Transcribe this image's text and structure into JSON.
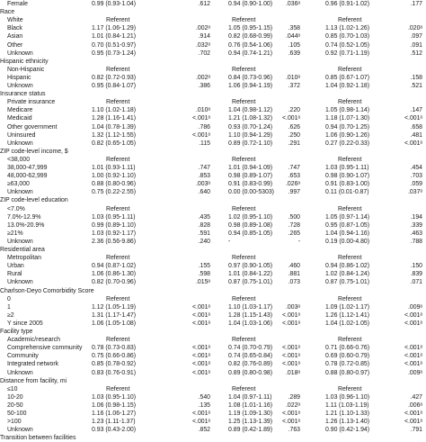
{
  "table": {
    "rows": [
      {
        "kind": "data",
        "label": "Female",
        "cells": [
          "0.99 (0.93-1.04)",
          ".612",
          "0.94 (0.90-1.00)",
          ".036ᵃ",
          "",
          "0.96 (0.91-1.02)",
          ".177"
        ]
      },
      {
        "kind": "section",
        "label": "Race"
      },
      {
        "kind": "ref",
        "label": "White",
        "cells": [
          "Referent",
          "",
          "",
          "Referent",
          "",
          "Referent",
          ""
        ]
      },
      {
        "kind": "data",
        "label": "Black",
        "cells": [
          "1.17 (1.06-1.29)",
          ".002ᵃ",
          "1.05 (0.95-1.15)",
          ".358",
          "",
          "1.13 (1.02-1.26)",
          ".020ᵃ"
        ]
      },
      {
        "kind": "data",
        "label": "Asian",
        "cells": [
          "1.01 (0.84-1.21)",
          ".914",
          "0.82 (0.68-0.99)",
          ".044ᵃ",
          "",
          "0.85 (0.70-1.03)",
          ".097"
        ]
      },
      {
        "kind": "data",
        "label": "Other",
        "cells": [
          "0.70 (0.51-0.97)",
          ".032ᵃ",
          "0.76 (0.54-1.06)",
          ".105",
          "",
          "0.74 (0.52-1.05)",
          ".091"
        ]
      },
      {
        "kind": "data",
        "label": "Unknown",
        "cells": [
          "0.95 (0.73-1.24)",
          ".702",
          "0.94 (0.74-1.21)",
          ".639",
          "",
          "0.92 (0.71-1.19)",
          ".512"
        ]
      },
      {
        "kind": "section",
        "label": "Hispanic ethnicity"
      },
      {
        "kind": "ref",
        "label": "Non-Hispanic",
        "cells": [
          "Referent",
          "",
          "",
          "Referent",
          "",
          "Referent",
          ""
        ]
      },
      {
        "kind": "data",
        "label": "Hispanic",
        "cells": [
          "0.82 (0.72-0.93)",
          ".002ᵃ",
          "0.84 (0.73-0.96)",
          ".010ᵃ",
          "",
          "0.85 (0.67-1.07)",
          ".158"
        ]
      },
      {
        "kind": "data",
        "label": "Unknown",
        "cells": [
          "0.95 (0.84-1.07)",
          ".386",
          "1.06 (0.94-1.19)",
          ".372",
          "",
          "1.04 (0.92-1.18)",
          ".521"
        ]
      },
      {
        "kind": "section",
        "label": "Insurance status"
      },
      {
        "kind": "ref",
        "label": "Private insurance",
        "cells": [
          "Referent",
          "",
          "",
          "Referent",
          "",
          "Referent",
          ""
        ]
      },
      {
        "kind": "data",
        "label": "Medicare",
        "cells": [
          "1.10 (1.02-1.18)",
          ".010ᵃ",
          "1.04 (0.98-1.12)",
          ".220",
          "",
          "1.05 (0.98-1.14)",
          ".147"
        ]
      },
      {
        "kind": "data",
        "label": "Medicaid",
        "cells": [
          "1.28 (1.16-1.41)",
          "<.001ᵃ",
          "1.21 (1.08-1.32)",
          "<.001ᵃ",
          "",
          "1.18 (1.07-1.30)",
          "<.001ᵃ"
        ]
      },
      {
        "kind": "data",
        "label": "Other government",
        "cells": [
          "1.04 (0.78-1.39)",
          ".786",
          "0.93 (0.70-1.24)",
          ".626",
          "",
          "0.94 (0.70-1.25)",
          ".658"
        ]
      },
      {
        "kind": "data",
        "label": "Uninsured",
        "cells": [
          "1.32 (1.12-1.55)",
          "<.001ᵃ",
          "1.10 (0.94-1.29)",
          ".250",
          "",
          "1.06 (0.90-1.26)",
          ".481"
        ]
      },
      {
        "kind": "data",
        "label": "Unknown",
        "cells": [
          "0.82 (0.65-1.05)",
          ".115",
          "0.89 (0.72-1.10)",
          ".291",
          "",
          "0.27 (0.22-0.33)",
          "<.001ᵃ"
        ]
      },
      {
        "kind": "section",
        "label": "ZIP code-level income, $"
      },
      {
        "kind": "ref",
        "label": "<38,000",
        "cells": [
          "Referent",
          "",
          "",
          "Referent",
          "",
          "Referent",
          ""
        ]
      },
      {
        "kind": "data",
        "label": "38,000-47,999",
        "cells": [
          "1.01 (0.93-1.11)",
          ".747",
          "1.01 (0.94-1.09)",
          ".747",
          "",
          "1.03 (0.95-1.11)",
          ".454"
        ]
      },
      {
        "kind": "data",
        "label": "48,000-62,999",
        "cells": [
          "1.00 (0.92-1.10)",
          ".853",
          "0.98 (0.89-1.07)",
          ".653",
          "",
          "0.98 (0.90-1.07)",
          ".703"
        ]
      },
      {
        "kind": "data",
        "label": "≥63,000",
        "cells": [
          "0.88 (0.80-0.96)",
          ".003ᵃ",
          "0.91 (0.83-0.99)",
          ".026ᵃ",
          "",
          "0.91 (0.83-1.00)",
          ".059"
        ]
      },
      {
        "kind": "data",
        "label": "Unknown",
        "cells": [
          "0.75 (0.22-2.55)",
          ".640",
          "0.00 (0.00-5303)",
          ".997",
          "",
          "0.11 (0.01-0.87)",
          ".037ᵃ"
        ]
      },
      {
        "kind": "section",
        "label": "ZIP code-level education"
      },
      {
        "kind": "ref",
        "label": "<7.0%",
        "cells": [
          "Referent",
          "",
          "",
          "Referent",
          "",
          "Referent",
          ""
        ]
      },
      {
        "kind": "data",
        "label": "7.0%-12.9%",
        "cells": [
          "1.03 (0.95-1.11)",
          ".435",
          "1.02 (0.95-1.10)",
          ".500",
          "",
          "1.05 (0.97-1.14)",
          ".194"
        ]
      },
      {
        "kind": "data",
        "label": "13.0%-20.9%",
        "cells": [
          "0.99 (0.89-1.10)",
          ".828",
          "0.98 (0.89-1.08)",
          ".728",
          "",
          "0.95 (0.87-1.05)",
          ".339"
        ]
      },
      {
        "kind": "data",
        "label": "≥21%",
        "cells": [
          "1.03 (0.92-1.17)",
          ".591",
          "0.94 (0.85-1.05)",
          ".265",
          "",
          "1.04 (0.94-1.16)",
          ".463"
        ]
      },
      {
        "kind": "data",
        "label": "Unknown",
        "cells": [
          "2.36 (0.56-9.86)",
          ".240",
          "-",
          "-",
          "",
          "0.19 (0.00-4.80)",
          ".788"
        ]
      },
      {
        "kind": "section",
        "label": "Residential area"
      },
      {
        "kind": "ref",
        "label": "Metropolitan",
        "cells": [
          "Referent",
          "",
          "",
          "Referent",
          "",
          "Referent",
          ""
        ]
      },
      {
        "kind": "data",
        "label": "Urban",
        "cells": [
          "0.94 (0.87-1.02)",
          ".155",
          "0.97 (0.90-1.05)",
          ".460",
          "",
          "0.94 (0.86-1.02)",
          ".150"
        ]
      },
      {
        "kind": "data",
        "label": "Rural",
        "cells": [
          "1.06 (0.86-1.30)",
          ".598",
          "1.01 (0.84-1.22)",
          ".881",
          "",
          "1.02 (0.84-1.24)",
          ".839"
        ]
      },
      {
        "kind": "data",
        "label": "Unknown",
        "cells": [
          "0.82 (0.70-0.96)",
          ".015ᵃ",
          "0.87 (0.75-1.01)",
          ".073",
          "",
          "0.87 (0.75-1.01)",
          ".071"
        ]
      },
      {
        "kind": "section",
        "label": "Charlson-Deyo Comorbidity Score"
      },
      {
        "kind": "ref",
        "label": "0",
        "cells": [
          "Referent",
          "",
          "",
          "Referent",
          "",
          "Referent",
          ""
        ]
      },
      {
        "kind": "data",
        "label": "1",
        "cells": [
          "1.12 (1.05-1.19)",
          "<.001ᵃ",
          "1.10 (1.03-1.17)",
          ".003ᵃ",
          "",
          "1.09 (1.02-1.17)",
          ".009ᵃ"
        ]
      },
      {
        "kind": "data",
        "label": "≥2",
        "cells": [
          "1.31 (1.17-1.47)",
          "<.001ᵃ",
          "1.28 (1.15-1.43)",
          "<.001ᵃ",
          "",
          "1.26 (1.12-1.41)",
          "<.001ᵃ"
        ]
      },
      {
        "kind": "data",
        "label": "Y since 2005",
        "cells": [
          "1.06 (1.05-1.08)",
          "<.001ᵃ",
          "1.04 (1.03-1.06)",
          "<.001ᵃ",
          "",
          "1.04 (1.02-1.05)",
          "<.001ᵃ"
        ]
      },
      {
        "kind": "section",
        "label": "Facility type"
      },
      {
        "kind": "ref",
        "label": "Academic/research",
        "cells": [
          "Referent",
          "",
          "",
          "Referent",
          "",
          "Referent",
          ""
        ]
      },
      {
        "kind": "data",
        "label": "Comprehensive community",
        "cells": [
          "0.78 (0.73-0.83)",
          "<.001ᵃ",
          "0.74 (0.70-0.79)",
          "<.001ᵃ",
          "",
          "0.71 (0.66-0.76)",
          "<.001ᵃ"
        ]
      },
      {
        "kind": "data",
        "label": "Community",
        "cells": [
          "0.75 (0.66-0.86)",
          "<.001ᵃ",
          "0.74 (0.65-0.84)",
          "<.001ᵃ",
          "",
          "0.69 (0.60-0.79)",
          "<.001ᵃ"
        ]
      },
      {
        "kind": "data",
        "label": "Integrated network",
        "cells": [
          "0.85 (0.78-0.92)",
          "<.001ᵃ",
          "0.82 (0.76-0.89)",
          "<.001ᵃ",
          "",
          "0.78 (0.72-0.85)",
          "<.001ᵃ"
        ]
      },
      {
        "kind": "data",
        "label": "Unknown",
        "cells": [
          "0.83 (0.76-0.91)",
          "<.001ᵃ",
          "0.89 (0.80-0.98)",
          ".018ᵃ",
          "",
          "0.88 (0.80-0.97)",
          ".009ᵃ"
        ]
      },
      {
        "kind": "section",
        "label": "Distance from facility, mi"
      },
      {
        "kind": "ref",
        "label": "≤10",
        "cells": [
          "Referent",
          "",
          "",
          "Referent",
          "",
          "Referent",
          ""
        ]
      },
      {
        "kind": "data",
        "label": "10-20",
        "cells": [
          "1.03 (0.95-1.10)",
          ".540",
          "1.04 (0.97-1.11)",
          ".289",
          "",
          "1.03 (0.96-1.10)",
          ".427"
        ]
      },
      {
        "kind": "data",
        "label": "20-50",
        "cells": [
          "1.06 (0.98-1.15)",
          ".135",
          "1.08 (1.01-1.16)",
          ".022ᵃ",
          "",
          "1.11 (1.03-1.19)",
          ".006ᵃ"
        ]
      },
      {
        "kind": "data",
        "label": "50-100",
        "cells": [
          "1.16 (1.06-1.27)",
          "<.001ᵃ",
          "1.19 (1.09-1.30)",
          "<.001ᵃ",
          "",
          "1.21 (1.10-1.33)",
          "<.001ᵃ"
        ]
      },
      {
        "kind": "data",
        "label": ">100",
        "cells": [
          "1.23 (1.11-1.37)",
          "<.001ᵃ",
          "1.25 (1.13-1.39)",
          "<.001ᵃ",
          "",
          "1.26 (1.13-1.40)",
          "<.001ᵃ"
        ]
      },
      {
        "kind": "data",
        "label": "Unknown",
        "cells": [
          "0.93 (0.43-2.00)",
          ".852",
          "0.89 (0.42-1.89)",
          ".763",
          "",
          "0.90 (0.42-1.94)",
          ".791"
        ]
      },
      {
        "kind": "section",
        "label": "Transition between facilities"
      }
    ]
  }
}
